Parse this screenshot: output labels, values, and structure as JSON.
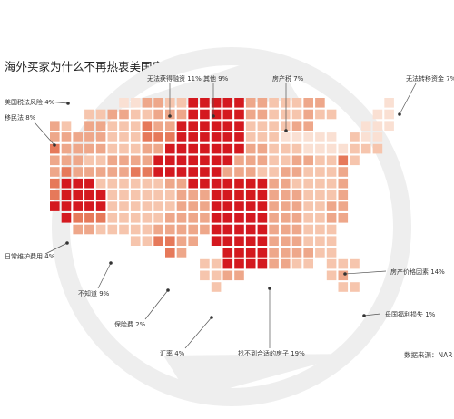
{
  "title": "海外买家为什么不再热衷美国房产?",
  "source": "数据来源：NAR",
  "colors": {
    "levels": [
      "#fae0d3",
      "#f6c5ad",
      "#eea78a",
      "#e6795a",
      "#d4191f"
    ],
    "leader": "#555555",
    "watermark": "#eeeeee"
  },
  "chart_data": {
    "type": "pictogram-map",
    "title": "海外买家为什么不再热衷美国房产?",
    "unit": "%",
    "categories": [
      "无法获得融资",
      "其他",
      "房产税",
      "无法转移资金",
      "美国税法风险",
      "移民法",
      "日常维护费用",
      "不知道",
      "保险费",
      "汇率",
      "找不到合适的房子",
      "房产价格因素",
      "母国福利损失"
    ],
    "values": [
      11,
      9,
      7,
      7,
      4,
      8,
      4,
      9,
      2,
      4,
      19,
      14,
      1
    ],
    "labels": [
      "无法获得融资 11%",
      "其他 9%",
      "房产税 7%",
      "无法转移资金 7%",
      "美国税法风险 4%",
      "移民法 8%",
      "日常维护费用 4%",
      "不知道 9%",
      "保险费 2%",
      "汇率 4%",
      "找不到合适的房子 19%",
      "房产价格因素 14%",
      "母国福利损失 1%"
    ]
  }
}
